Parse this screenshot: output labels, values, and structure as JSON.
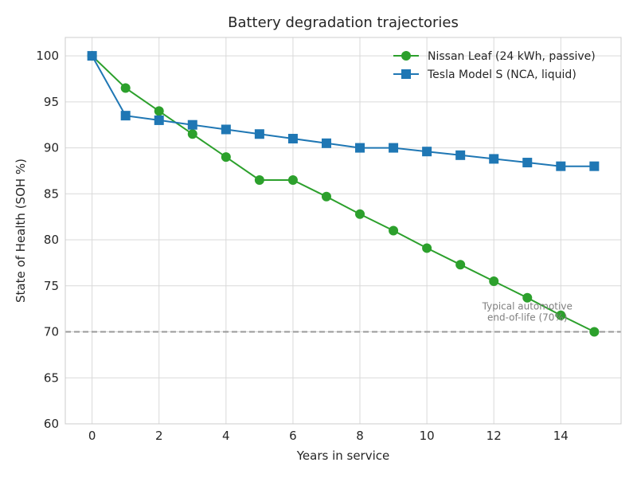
{
  "chart_data": {
    "type": "line",
    "title": "Battery degradation trajectories",
    "xlabel": "Years in service",
    "ylabel": "State of Health (SOH %)",
    "xlim": [
      -0.8,
      15.8
    ],
    "ylim": [
      60,
      102
    ],
    "xticks": [
      0,
      2,
      4,
      6,
      8,
      10,
      12,
      14
    ],
    "yticks": [
      60,
      65,
      70,
      75,
      80,
      85,
      90,
      95,
      100
    ],
    "grid": true,
    "legend_position": "top-right",
    "x": [
      0,
      1,
      2,
      3,
      4,
      5,
      6,
      7,
      8,
      9,
      10,
      11,
      12,
      13,
      14,
      15
    ],
    "series": [
      {
        "name": "Nissan Leaf (24 kWh, passive)",
        "color": "#2ca02c",
        "marker": "circle",
        "values": [
          100,
          96.5,
          94,
          91.5,
          89,
          86.5,
          86.5,
          84.7,
          82.8,
          81,
          79.1,
          77.3,
          75.5,
          73.7,
          71.8,
          70
        ]
      },
      {
        "name": "Tesla Model S (NCA, liquid)",
        "color": "#1f77b4",
        "marker": "square",
        "values": [
          100,
          93.5,
          93,
          92.5,
          92,
          91.5,
          91,
          90.5,
          90,
          90,
          89.6,
          89.2,
          88.8,
          88.4,
          88,
          88
        ]
      }
    ],
    "reference_line": {
      "y": 70,
      "color": "#999999",
      "style": "dashed",
      "label_lines": [
        "Typical automotive",
        "end-of-life (70%)"
      ]
    }
  }
}
